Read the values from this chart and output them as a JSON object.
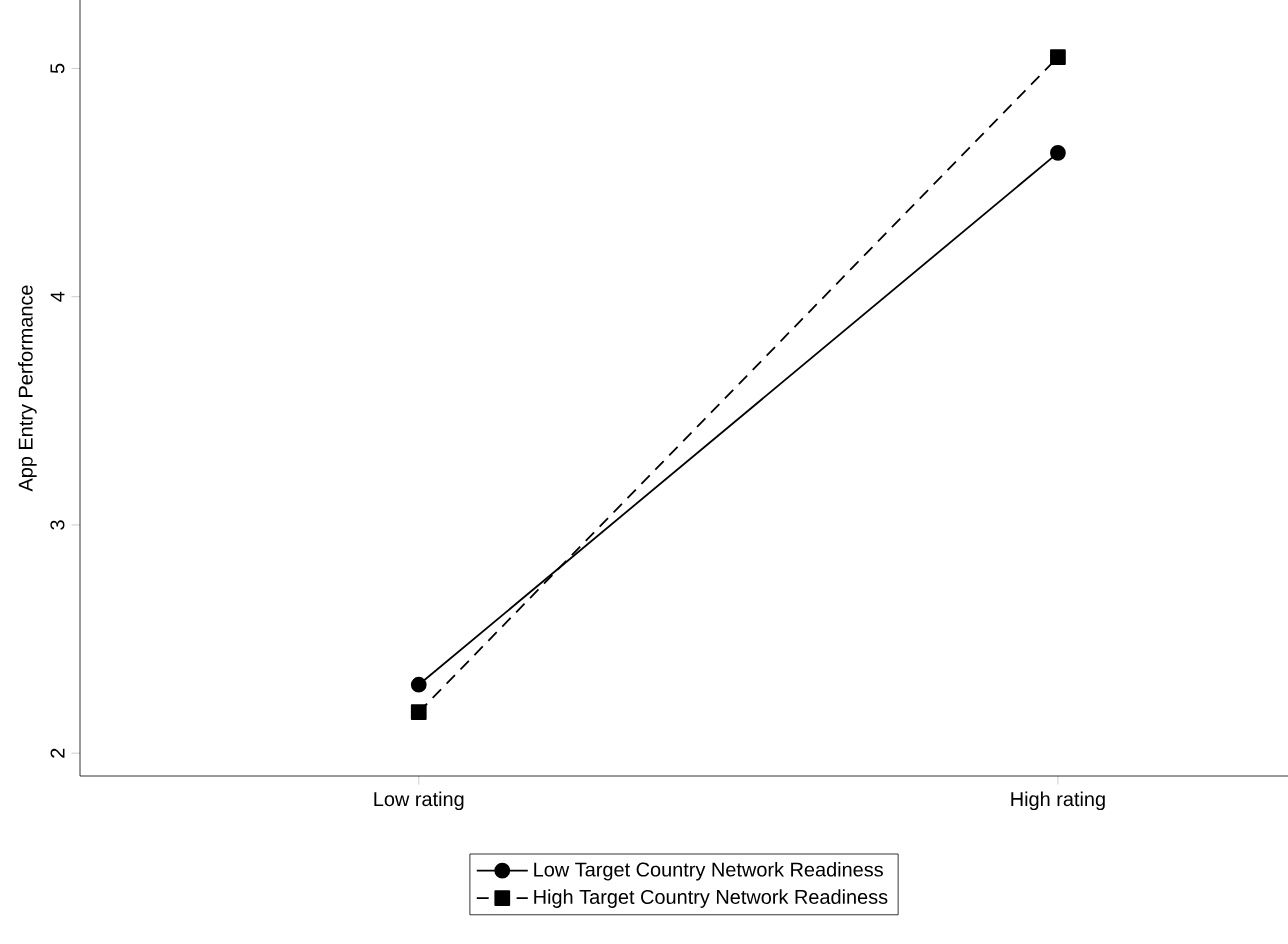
{
  "chart_data": {
    "type": "line",
    "ylabel": "App Entry Performance",
    "categories": [
      "Low rating",
      "High rating"
    ],
    "series": [
      {
        "name": "Low Target Country Network Readiness",
        "color": "#000000",
        "values": [
          2.3,
          4.63
        ],
        "marker": "circle",
        "line_style": "solid"
      },
      {
        "name": "High Target Country Network Readiness",
        "color": "#000000",
        "values": [
          2.18,
          5.05
        ],
        "marker": "square",
        "line_style": "dashed"
      }
    ],
    "ylim": [
      1.9,
      5.3
    ],
    "yticks": [
      2,
      3,
      4,
      5
    ],
    "grid": false,
    "legend": "bottom"
  }
}
